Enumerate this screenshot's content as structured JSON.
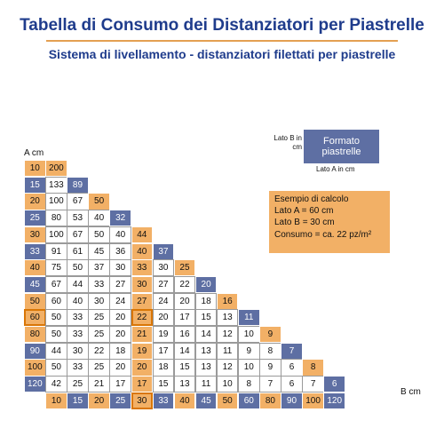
{
  "header": {
    "title": "Tabella di Consumo dei Distanziatori per Piastrelle",
    "subtitle": "Sistema di livellamento - distanziatori filettati per piastrelle"
  },
  "axis_labels": {
    "a": "A cm",
    "b": "B cm"
  },
  "legend": {
    "box_text": "Formato piastrelle",
    "side_label": "Lato B in cm",
    "bottom_label": "Lato A in cm"
  },
  "example": {
    "lines": [
      "Esempio di calcolo",
      "Lato A = 60 cm",
      "Lato B = 30 cm",
      "Consumo = ca. 22 pz/m²"
    ]
  },
  "colors": {
    "orange": "#f2b066",
    "blue": "#5e6fa3",
    "title": "#1f3c8c",
    "highlight": "#d97606"
  },
  "table": {
    "a_values": [
      "10",
      "15",
      "20",
      "25",
      "30",
      "33",
      "40",
      "45",
      "50",
      "60",
      "80",
      "90",
      "100",
      "120"
    ],
    "a_colors": [
      "orange",
      "blue",
      "orange",
      "blue",
      "orange",
      "blue",
      "orange",
      "blue",
      "orange",
      "orange",
      "orange",
      "blue",
      "orange",
      "blue"
    ],
    "b_values": [
      "10",
      "15",
      "20",
      "25",
      "30",
      "33",
      "40",
      "45",
      "50",
      "60",
      "80",
      "90",
      "100",
      "120"
    ],
    "b_colors": [
      "orange",
      "blue",
      "orange",
      "blue",
      "orange",
      "blue",
      "orange",
      "blue",
      "orange",
      "blue",
      "orange",
      "blue",
      "orange",
      "blue"
    ],
    "rows": [
      [
        "200"
      ],
      [
        "133",
        "89"
      ],
      [
        "100",
        "67",
        "50"
      ],
      [
        "80",
        "53",
        "40",
        "32"
      ],
      [
        "100",
        "67",
        "50",
        "40",
        "44"
      ],
      [
        "91",
        "61",
        "45",
        "36",
        "40",
        "37"
      ],
      [
        "75",
        "50",
        "37",
        "30",
        "33",
        "30",
        "25"
      ],
      [
        "67",
        "44",
        "33",
        "27",
        "30",
        "27",
        "22",
        "20"
      ],
      [
        "60",
        "40",
        "30",
        "24",
        "27",
        "24",
        "20",
        "18",
        "16"
      ],
      [
        "50",
        "33",
        "25",
        "20",
        "22",
        "20",
        "17",
        "15",
        "13",
        "11"
      ],
      [
        "50",
        "33",
        "25",
        "20",
        "21",
        "19",
        "16",
        "14",
        "12",
        "10",
        "9"
      ],
      [
        "44",
        "30",
        "22",
        "18",
        "19",
        "17",
        "14",
        "13",
        "11",
        "9",
        "8",
        "7"
      ],
      [
        "50",
        "33",
        "25",
        "20",
        "20",
        "18",
        "15",
        "13",
        "12",
        "10",
        "9",
        "6",
        "8"
      ],
      [
        "42",
        "25",
        "21",
        "17",
        "17",
        "15",
        "13",
        "11",
        "10",
        "8",
        "7",
        "6",
        "7",
        "6"
      ]
    ],
    "diagonal_colors": [
      "orange",
      "blue",
      "orange",
      "blue",
      "orange",
      "blue",
      "orange",
      "blue",
      "orange",
      "blue",
      "orange",
      "blue",
      "orange",
      "blue"
    ],
    "orange_column_index": 4,
    "highlight": {
      "row": 9,
      "col": 4
    }
  }
}
